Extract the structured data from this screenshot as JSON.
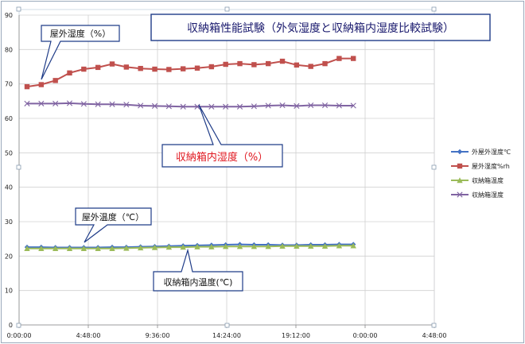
{
  "chart_data": {
    "type": "line",
    "title": "収納箱性能試験（外気湿度と収納箱内湿度比較試験）",
    "ylim": [
      0,
      90
    ],
    "yticks": [
      0,
      10,
      20,
      30,
      40,
      50,
      60,
      70,
      80,
      90
    ],
    "xticks": [
      "0:00:00",
      "4:48:00",
      "9:36:00",
      "14:24:00",
      "19:12:00",
      "0:00:00",
      "4:48:00"
    ],
    "grid": true,
    "legend_position": "right",
    "series": [
      {
        "name": "外屋外湿度℃",
        "color": "#4472c4",
        "marker": "diamond",
        "values": [
          22.6,
          22.6,
          22.5,
          22.5,
          22.5,
          22.5,
          22.6,
          22.6,
          22.7,
          22.8,
          22.9,
          23.0,
          23.1,
          23.2,
          23.3,
          23.4,
          23.3,
          23.3,
          23.2,
          23.2,
          23.3,
          23.3,
          23.4,
          23.4
        ]
      },
      {
        "name": "屋外湿度%rh",
        "color": "#c0504d",
        "marker": "square",
        "values": [
          69.2,
          69.8,
          71.0,
          73.2,
          74.3,
          74.8,
          75.8,
          74.9,
          74.5,
          74.3,
          74.2,
          74.4,
          74.6,
          75.0,
          75.7,
          75.9,
          75.6,
          75.9,
          76.6,
          75.5,
          75.1,
          75.9,
          77.4,
          77.4
        ]
      },
      {
        "name": "収納箱温度",
        "color": "#9bbb59",
        "marker": "triangle",
        "values": [
          22.2,
          22.2,
          22.2,
          22.2,
          22.2,
          22.2,
          22.2,
          22.3,
          22.4,
          22.5,
          22.6,
          22.6,
          22.7,
          22.7,
          22.8,
          22.8,
          22.8,
          22.8,
          22.9,
          22.9,
          22.9,
          22.9,
          23.0,
          23.0
        ]
      },
      {
        "name": "収納箱湿度",
        "color": "#8064a2",
        "marker": "x",
        "values": [
          64.3,
          64.3,
          64.3,
          64.4,
          64.2,
          64.1,
          64.1,
          64.0,
          63.7,
          63.6,
          63.5,
          63.4,
          63.4,
          63.4,
          63.4,
          63.4,
          63.5,
          63.7,
          63.8,
          63.6,
          63.8,
          63.8,
          63.7,
          63.7
        ]
      }
    ],
    "annotations": {
      "outdoor_humidity": "屋外湿度（%）",
      "box_humidity": "収納箱内湿度（%）",
      "outdoor_temp": "屋外温度（℃）",
      "box_temp": "収納箱内温度(℃)"
    }
  }
}
